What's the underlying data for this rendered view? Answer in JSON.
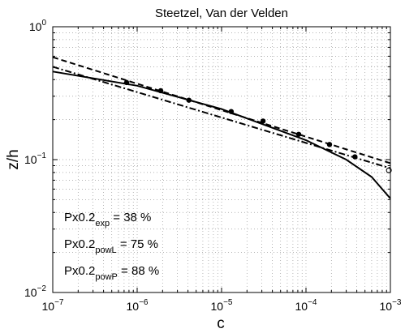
{
  "chart_data": {
    "type": "line",
    "title": "Steetzel, Van der Velden",
    "xlabel": "c",
    "ylabel": "z/h",
    "xscale": "log",
    "yscale": "log",
    "xlim": [
      1e-07,
      0.001
    ],
    "ylim": [
      0.01,
      1
    ],
    "grid": "on",
    "x_ticks": [
      {
        "value": 1e-07,
        "base": "10",
        "exp": "−7"
      },
      {
        "value": 1e-06,
        "base": "10",
        "exp": "−6"
      },
      {
        "value": 1e-05,
        "base": "10",
        "exp": "−5"
      },
      {
        "value": 0.0001,
        "base": "10",
        "exp": "−4"
      },
      {
        "value": 0.001,
        "base": "10",
        "exp": "−3"
      }
    ],
    "y_ticks": [
      {
        "value": 0.01,
        "base": "10",
        "exp": "−2"
      },
      {
        "value": 0.1,
        "base": "10",
        "exp": "−1"
      },
      {
        "value": 1,
        "base": "10",
        "exp": "0"
      }
    ],
    "observations": {
      "filled": {
        "x": [
          7.5e-07,
          1.9e-06,
          4.1e-06,
          1.3e-05,
          3.1e-05,
          8.2e-05,
          0.00019,
          0.00038
        ],
        "y": [
          0.38,
          0.33,
          0.28,
          0.23,
          0.195,
          0.155,
          0.13,
          0.105
        ]
      },
      "open": {
        "x": [
          0.00096
        ],
        "y": [
          0.083
        ]
      }
    },
    "series": [
      {
        "style": "solid",
        "x": [
          1e-07,
          1e-06,
          1e-05,
          0.0001,
          0.0003,
          0.0006,
          0.001
        ],
        "y": [
          0.46,
          0.36,
          0.24,
          0.14,
          0.1,
          0.074,
          0.051
        ]
      },
      {
        "style": "dashed",
        "x": [
          1e-07,
          0.001
        ],
        "y": [
          0.59,
          0.094
        ]
      },
      {
        "style": "dashdot",
        "x": [
          1e-07,
          0.001
        ],
        "y": [
          0.5,
          0.086
        ]
      }
    ]
  },
  "annotations": [
    {
      "main": "Px0.2",
      "sub": "exp",
      "tail": " = 38 %"
    },
    {
      "main": "Px0.2",
      "sub": "powL",
      "tail": " = 75 %"
    },
    {
      "main": "Px0.2",
      "sub": "powP",
      "tail": " = 88 %"
    }
  ]
}
